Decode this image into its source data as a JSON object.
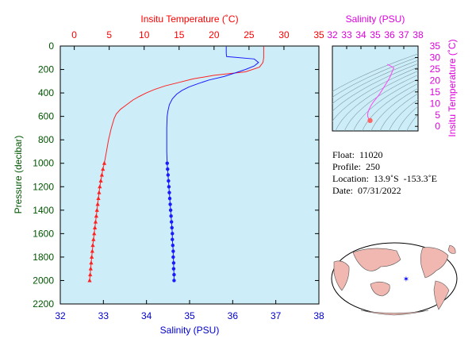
{
  "main_plot": {
    "top_axis_title": "Insitu Temperature (˚C)",
    "bottom_axis_title": "Salinity (PSU)",
    "left_axis_title": "Pressure (decibar)",
    "temp_ticks": [
      "0",
      "5",
      "10",
      "15",
      "20",
      "25",
      "30",
      "35"
    ],
    "sal_ticks": [
      "32",
      "33",
      "34",
      "35",
      "36",
      "37",
      "38"
    ],
    "pressure_ticks": [
      "0",
      "200",
      "400",
      "600",
      "800",
      "1000",
      "1200",
      "1400",
      "1600",
      "1800",
      "2000",
      "2200"
    ]
  },
  "ts_plot": {
    "top_axis_title": "Salinity (PSU)",
    "right_axis_title": "Insitu Temperature (˚C)",
    "sal_ticks": [
      "32",
      "33",
      "34",
      "35",
      "36",
      "37",
      "38"
    ],
    "temp_ticks": [
      "0",
      "5",
      "10",
      "15",
      "20",
      "25",
      "30",
      "35"
    ]
  },
  "info": {
    "float": "Float:  11020",
    "profile": "Profile:  250",
    "location": "Location:  13.9˚S  -153.3˚E",
    "date": "Date:  07/31/2022"
  },
  "colors": {
    "plot_bg": "#cdeef8",
    "temperature": "#ff2222",
    "salinity": "#1a1aff",
    "ts_curve": "#ff44ff",
    "temp_axis": "#ff0000",
    "sal_axis": "#0000cc",
    "pressure_axis": "#005500",
    "ts_axis": "#dd00dd",
    "ocean": "#ffffff",
    "land": "#f0b8b0"
  },
  "chart_data": [
    {
      "type": "line",
      "title": "",
      "xlabel": "Insitu Temperature (˚C)",
      "ylabel": "Pressure (decibar)",
      "xlim": [
        -2,
        35
      ],
      "ylim": [
        2200,
        0
      ],
      "series": [
        {
          "name": "Insitu Temperature (˚C)",
          "color": "#ff2222",
          "pressure": [
            5,
            30,
            60,
            100,
            140,
            180,
            220,
            250,
            280,
            310,
            340,
            370,
            400,
            430,
            460,
            500,
            540,
            580,
            620,
            700,
            800,
            900,
            1000,
            1050,
            1100,
            1150,
            1200,
            1250,
            1300,
            1350,
            1400,
            1450,
            1500,
            1550,
            1600,
            1650,
            1700,
            1750,
            1800,
            1850,
            1900,
            1950,
            2000
          ],
          "temperature": [
            27.1,
            27.1,
            27.1,
            27.1,
            27.0,
            26.5,
            24.5,
            20.0,
            17.0,
            15.0,
            13.0,
            11.5,
            10.3,
            9.3,
            8.4,
            7.5,
            6.6,
            6.0,
            5.7,
            5.3,
            4.9,
            4.6,
            4.3,
            4.1,
            3.95,
            3.8,
            3.65,
            3.55,
            3.45,
            3.35,
            3.25,
            3.15,
            3.05,
            2.95,
            2.85,
            2.75,
            2.65,
            2.58,
            2.5,
            2.42,
            2.35,
            2.28,
            2.2
          ]
        },
        {
          "name": "Salinity (PSU)",
          "color": "#1a1aff",
          "pressure": [
            5,
            30,
            60,
            90,
            110,
            140,
            170,
            200,
            230,
            260,
            290,
            320,
            350,
            380,
            410,
            450,
            500,
            550,
            600,
            700,
            800,
            900,
            1000,
            1050,
            1100,
            1150,
            1200,
            1250,
            1300,
            1350,
            1400,
            1450,
            1500,
            1550,
            1600,
            1650,
            1700,
            1750,
            1800,
            1850,
            1900,
            1950,
            2000
          ],
          "salinity": [
            35.85,
            35.85,
            35.85,
            35.86,
            36.5,
            36.6,
            36.5,
            36.3,
            36.05,
            35.8,
            35.45,
            35.2,
            34.98,
            34.82,
            34.7,
            34.6,
            34.53,
            34.5,
            34.48,
            34.47,
            34.47,
            34.47,
            34.48,
            34.49,
            34.5,
            34.51,
            34.52,
            34.53,
            34.54,
            34.55,
            34.56,
            34.57,
            34.58,
            34.59,
            34.6,
            34.6,
            34.61,
            34.62,
            34.62,
            34.63,
            34.63,
            34.64,
            34.64
          ]
        }
      ],
      "secondary_x": {
        "label": "Salinity (PSU)",
        "xlim": [
          32,
          38
        ]
      },
      "markers_from_pressure": 1000
    },
    {
      "type": "line",
      "title": "",
      "xlabel": "Salinity (PSU)",
      "ylabel": "Insitu Temperature (˚C)",
      "xlim": [
        32,
        38
      ],
      "ylim": [
        -2,
        35
      ],
      "series": [
        {
          "name": "",
          "color": "#ff44ff",
          "salinity": [
            35.85,
            35.86,
            36.3,
            36.0,
            35.6,
            35.3,
            35.05,
            34.85,
            34.7,
            34.58,
            34.5,
            34.47,
            34.48,
            34.52,
            34.56,
            34.6,
            34.64
          ],
          "temperature": [
            27.1,
            27.0,
            25.5,
            21.0,
            17.0,
            14.0,
            12.0,
            10.5,
            9.0,
            7.5,
            6.2,
            5.3,
            4.3,
            3.6,
            3.1,
            2.6,
            2.2
          ]
        }
      ]
    }
  ]
}
